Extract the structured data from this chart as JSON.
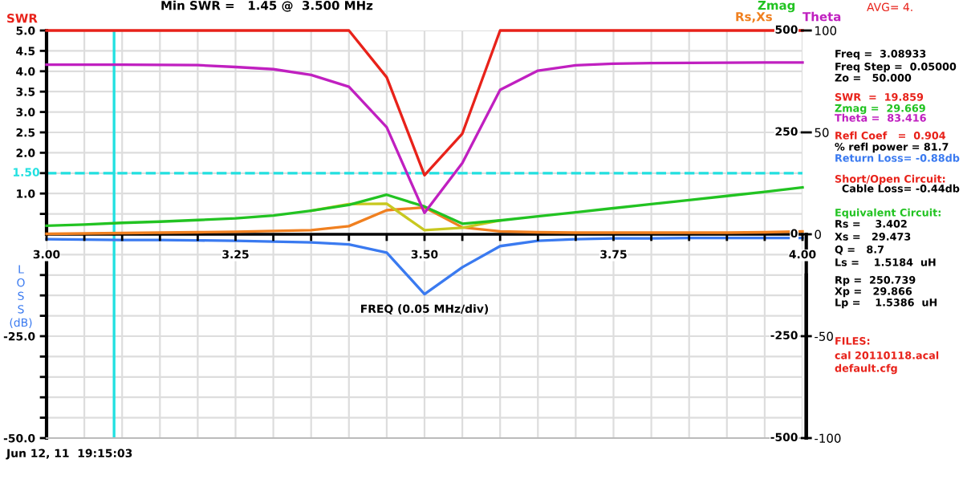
{
  "chart_data": [
    {
      "type": "line",
      "title": "Min SWR =   1.45 @  3.500 MHz",
      "y2label": "Rs,Xs",
      "x": [
        3.0,
        3.05,
        3.1,
        3.15,
        3.2,
        3.25,
        3.3,
        3.35,
        3.4,
        3.45,
        3.5,
        3.55,
        3.6,
        3.65,
        3.7,
        3.75,
        3.8,
        3.85,
        3.9,
        3.95,
        4.0
      ],
      "xlim": [
        3.0,
        4.0
      ],
      "xticks": [
        {
          "value": 3.0,
          "label": "3.00"
        },
        {
          "value": 3.05,
          "label": null
        },
        {
          "value": 3.1,
          "label": null
        },
        {
          "value": 3.15,
          "label": null
        },
        {
          "value": 3.2,
          "label": null
        },
        {
          "value": 3.25,
          "label": "3.25"
        },
        {
          "value": 3.3,
          "label": null
        },
        {
          "value": 3.35,
          "label": null
        },
        {
          "value": 3.4,
          "label": null
        },
        {
          "value": 3.45,
          "label": null
        },
        {
          "value": 3.5,
          "label": "3.50"
        },
        {
          "value": 3.55,
          "label": null
        },
        {
          "value": 3.6,
          "label": null
        },
        {
          "value": 3.65,
          "label": null
        },
        {
          "value": 3.7,
          "label": null
        },
        {
          "value": 3.75,
          "label": "3.75"
        },
        {
          "value": 3.8,
          "label": null
        },
        {
          "value": 3.85,
          "label": null
        },
        {
          "value": 3.9,
          "label": null
        },
        {
          "value": 3.95,
          "label": null
        },
        {
          "value": 4.0,
          "label": "4.00"
        }
      ],
      "ylim": [
        0,
        5
      ],
      "yticks": [
        {
          "value": 0.5,
          "label": null
        },
        {
          "value": 1,
          "label": "1.0"
        },
        {
          "value": 1.5,
          "label": null
        },
        {
          "value": 2,
          "label": "2.0"
        },
        {
          "value": 2.5,
          "label": "2.5"
        },
        {
          "value": 3,
          "label": "3.0"
        },
        {
          "value": 3.5,
          "label": "3.5"
        },
        {
          "value": 4,
          "label": "4.0"
        },
        {
          "value": 4.5,
          "label": "4.5"
        },
        {
          "value": 5,
          "label": "5.0"
        }
      ],
      "y2lim": [
        0,
        500
      ],
      "y2ticks": [
        500,
        250,
        0
      ],
      "y3lim": [
        0,
        100
      ],
      "y3ticks": [
        100,
        50,
        0
      ],
      "grid": true,
      "legend": false,
      "marker": "none",
      "line_style": "solid",
      "series": [
        {
          "color": "#f08020",
          "axis": "y2",
          "values": [
            1,
            2,
            3,
            4,
            5,
            6,
            8,
            10,
            20,
            59,
            66,
            17,
            7,
            5,
            4,
            4,
            4,
            4,
            4,
            5,
            7
          ]
        },
        {
          "color": "#c8c820",
          "axis": "y2",
          "values": [
            null,
            null,
            null,
            null,
            null,
            null,
            null,
            58,
            74,
            75,
            10,
            16,
            34,
            null,
            null,
            null,
            null,
            null,
            null,
            null,
            null
          ]
        },
        {
          "name": "Zmag",
          "color": "#22c322",
          "axis": "y2",
          "values": [
            21,
            24,
            28,
            31,
            35,
            39,
            46,
            58,
            72,
            97,
            68,
            26,
            34,
            44,
            54,
            64,
            74,
            84,
            94,
            104,
            115
          ]
        },
        {
          "name": "Theta",
          "color": "#c020c0",
          "axis": "y3",
          "values": [
            83.2,
            83.2,
            83.2,
            83.1,
            83.0,
            82.1,
            81.0,
            78.2,
            72.4,
            52.5,
            10.5,
            34.9,
            70.9,
            80.3,
            82.9,
            83.7,
            84.0,
            84.1,
            84.2,
            84.3,
            84.3
          ]
        },
        {
          "name": "SWR",
          "color": "#e8221a",
          "values": [
            5.0,
            5.0,
            5.0,
            5.0,
            5.0,
            5.0,
            5.0,
            5.0,
            5.0,
            3.85,
            1.45,
            2.47,
            5.0,
            5.0,
            5.0,
            5.0,
            5.0,
            5.0,
            5.0,
            5.0,
            5.0
          ]
        }
      ],
      "ref_lines": [
        {
          "axis": "y",
          "value": 1.5,
          "label": "1.50",
          "color": "#22e0e0",
          "line_style": "dashed"
        },
        {
          "axis": "x",
          "value": 3.08933,
          "color": "#22e0e0",
          "line_style": "solid"
        }
      ],
      "annotations": [
        "Jun 12, 11  19:15:03",
        "AVG= 4.",
        "Freq =  3.08933",
        "Freq Step =  0.05000",
        "Zo =   50.000",
        "SWR  =  19.859",
        "Zmag =  29.669",
        "Theta =  83.416",
        "Refl Coef   =  0.904",
        "% refl power = 81.7",
        "Return Loss= -0.88db",
        "Short/Open Circuit:",
        "  Cable Loss= -0.44db",
        "Equivalent Circuit:",
        "Rs =    3.402",
        "Xs =   29.473",
        "Q =   8.7",
        "Ls =    1.5184  uH",
        "Rp =  250.739",
        "Xp =   29.866",
        "Lp =    1.5386  uH",
        "FILES:",
        "cal 20110118.acal",
        "default.cfg"
      ]
    },
    {
      "type": "line",
      "xlabel": "FREQ (0.05 MHz/div)",
      "ylabel": "L\nO\nS\nS\n(dB)",
      "tick_labels": "y",
      "x": [
        3.0,
        3.05,
        3.1,
        3.15,
        3.2,
        3.25,
        3.3,
        3.35,
        3.4,
        3.45,
        3.5,
        3.55,
        3.6,
        3.65,
        3.7,
        3.75,
        3.8,
        3.85,
        3.9,
        3.95,
        4.0
      ],
      "xlim": [
        3.0,
        4.0
      ],
      "xticks": [
        3.0,
        3.05,
        3.1,
        3.15,
        3.2,
        3.25,
        3.3,
        3.35,
        3.4,
        3.45,
        3.5,
        3.55,
        3.6,
        3.65,
        3.7,
        3.75,
        3.8,
        3.85,
        3.9,
        3.95,
        4.0
      ],
      "ylim": [
        -50,
        0
      ],
      "yticks": [
        {
          "value": -5,
          "label": null
        },
        {
          "value": -10,
          "label": null
        },
        {
          "value": -15,
          "label": null
        },
        {
          "value": -20,
          "label": null
        },
        {
          "value": -25,
          "label": "-25.0"
        },
        {
          "value": -30,
          "label": null
        },
        {
          "value": -35,
          "label": null
        },
        {
          "value": -40,
          "label": null
        },
        {
          "value": -45,
          "label": null
        },
        {
          "value": -50,
          "label": "-50.0"
        }
      ],
      "y2lim": [
        -500,
        0
      ],
      "y2ticks": [
        -250,
        -500
      ],
      "y3lim": [
        -100,
        0
      ],
      "y3ticks": [
        -50,
        -100
      ],
      "grid": true,
      "legend": false,
      "marker": "none",
      "line_style": "solid",
      "series": [
        {
          "color": "#3a7af0",
          "values": [
            -1.2,
            -1.3,
            -1.4,
            -1.4,
            -1.5,
            -1.6,
            -1.8,
            -2.0,
            -2.5,
            -4.5,
            -14.7,
            -8.1,
            -2.9,
            -1.6,
            -1.2,
            -1.0,
            -1.0,
            -0.9,
            -0.9,
            -0.9,
            -0.9
          ]
        }
      ],
      "ref_lines": [
        {
          "axis": "x",
          "value": 3.08933,
          "color": "#22e0e0",
          "line_style": "solid"
        }
      ]
    }
  ]
}
